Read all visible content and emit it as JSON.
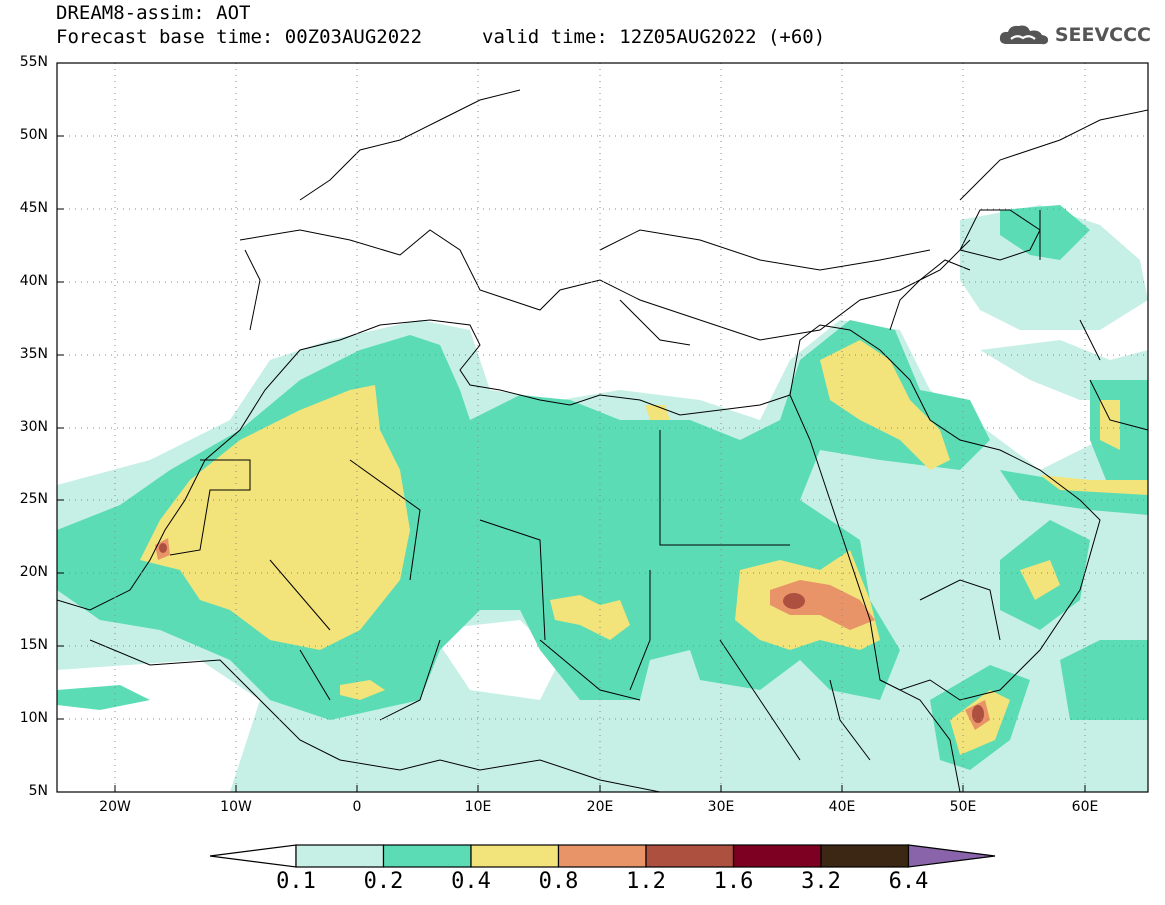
{
  "header": {
    "line1": "DREAM8-assim: AOT",
    "line2": "Forecast base time: 00Z03AUG2022",
    "line3": "valid time: 12Z05AUG2022 (+60)",
    "logo_text": "SEEVCCC"
  },
  "map": {
    "lat_labels": [
      "55N",
      "50N",
      "45N",
      "40N",
      "35N",
      "30N",
      "25N",
      "20N",
      "15N",
      "10N",
      "5N"
    ],
    "lon_labels": [
      "20W",
      "10W",
      "0",
      "10E",
      "20E",
      "30E",
      "40E",
      "50E",
      "60E"
    ],
    "extent": {
      "lon_min": -25,
      "lon_max": 65,
      "lat_min": 5,
      "lat_max": 55
    },
    "field": "AOT"
  },
  "colorbar": {
    "levels": [
      "0.1",
      "0.2",
      "0.4",
      "0.8",
      "1.2",
      "1.6",
      "3.2",
      "6.4"
    ],
    "colors": [
      "#c6f0e6",
      "#5cdcb4",
      "#f2e37a",
      "#e89468",
      "#ad5040",
      "#7d0023",
      "#3c2614",
      "#8a64aa"
    ],
    "under_color": "#ffffff"
  }
}
